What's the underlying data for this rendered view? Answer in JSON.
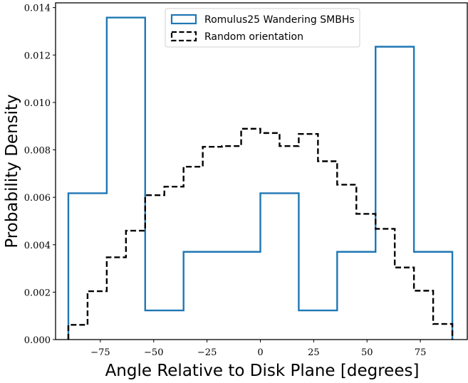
{
  "chart_data": {
    "type": "histogram",
    "title": "",
    "xlabel": "Angle Relative to Disk Plane [degrees]",
    "ylabel": "Probability Density",
    "xlim": [
      -96,
      97
    ],
    "ylim": [
      0,
      0.0142
    ],
    "xticks": [
      -75,
      -50,
      -25,
      0,
      25,
      50,
      75
    ],
    "xtick_labels": [
      "−75",
      "−50",
      "−25",
      "0",
      "25",
      "50",
      "75"
    ],
    "yticks": [
      0,
      0.002,
      0.004,
      0.006,
      0.008,
      0.01,
      0.012,
      0.014
    ],
    "ytick_labels": [
      "0.000",
      "0.002",
      "0.004",
      "0.006",
      "0.008",
      "0.010",
      "0.012",
      "0.014"
    ],
    "grid": false,
    "legend_position": "top-center",
    "series": [
      {
        "name": "Romulus25 Wandering SMBHs",
        "style": "solid",
        "color": "#1f77b4",
        "bin_edges": [
          -90,
          -72,
          -54,
          -36,
          -18,
          0,
          18,
          36,
          54,
          72,
          90
        ],
        "values": [
          0.00617,
          0.01358,
          0.00123,
          0.0037,
          0.0037,
          0.00617,
          0.00123,
          0.0037,
          0.01235,
          0.0037
        ]
      },
      {
        "name": "Random orientation",
        "style": "dashed",
        "color": "#000000",
        "bin_edges": [
          -90,
          -81,
          -72,
          -63,
          -54,
          -45,
          -36,
          -27,
          -18,
          -9,
          0,
          9,
          18,
          27,
          36,
          45,
          54,
          63,
          72,
          81,
          90
        ],
        "values": [
          0.00062,
          0.00204,
          0.00347,
          0.00459,
          0.00609,
          0.00645,
          0.00729,
          0.00813,
          0.00816,
          0.00889,
          0.00871,
          0.00816,
          0.00867,
          0.00752,
          0.00653,
          0.0053,
          0.00467,
          0.00304,
          0.00206,
          0.00066
        ]
      }
    ]
  }
}
